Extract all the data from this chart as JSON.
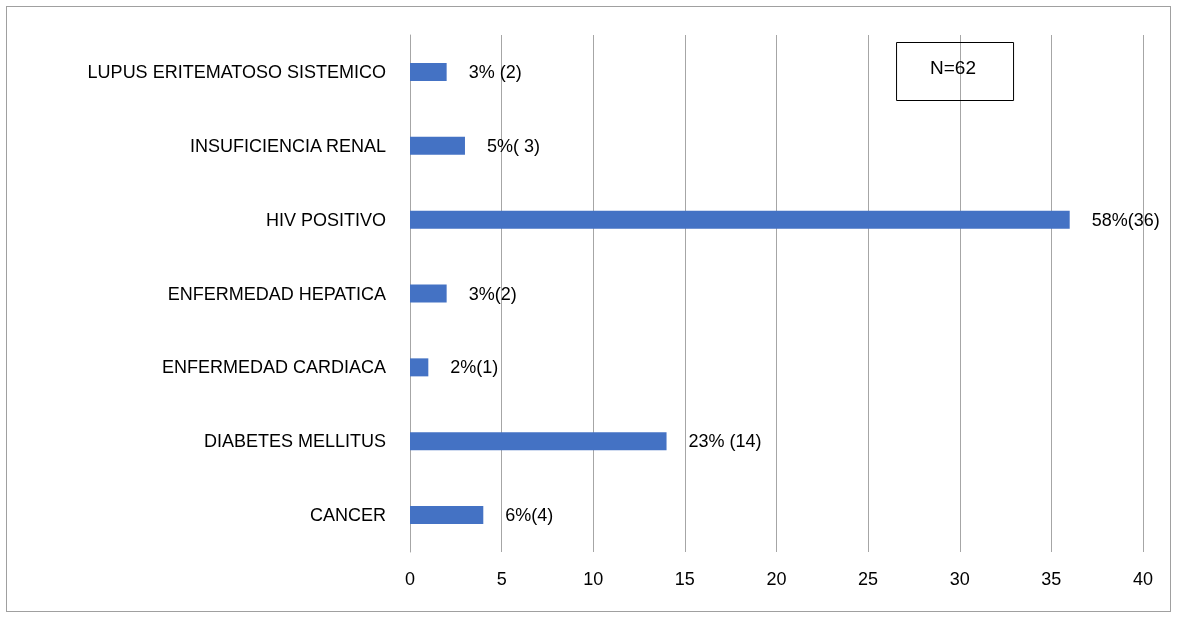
{
  "chart_data": {
    "type": "bar",
    "orientation": "horizontal",
    "categories": [
      "LUPUS ERITEMATOSO SISTEMICO",
      "INSUFICIENCIA RENAL",
      "HIV POSITIVO",
      "ENFERMEDAD HEPATICA",
      "ENFERMEDAD CARDIACA",
      "DIABETES MELLITUS",
      "CANCER"
    ],
    "values": [
      2,
      3,
      36,
      2,
      1,
      14,
      4
    ],
    "value_labels": [
      "3% (2)",
      "5%( 3)",
      "58%(36)",
      "3%(2)",
      "2%(1)",
      "23% (14)",
      "6%(4)"
    ],
    "color": "#4472c4",
    "xlim": [
      0,
      40
    ],
    "xticks": [
      0,
      5,
      10,
      15,
      20,
      25,
      30,
      35,
      40
    ],
    "grid": "x",
    "annotations": [
      "N=62"
    ]
  }
}
